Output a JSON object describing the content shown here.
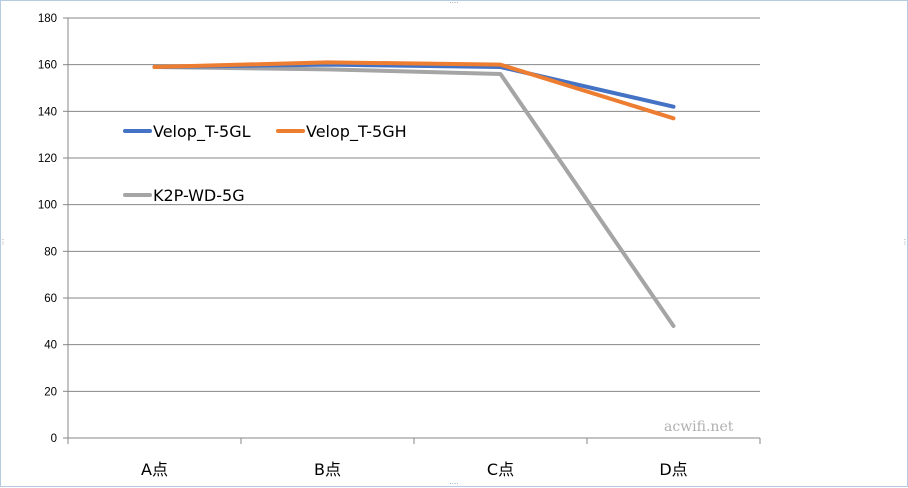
{
  "chart_data": {
    "type": "line",
    "categories": [
      "A点",
      "B点",
      "C点",
      "D点"
    ],
    "series": [
      {
        "name": "Velop_T-5GL",
        "color": "#4472c4",
        "values": [
          159,
          160,
          159,
          142
        ]
      },
      {
        "name": "Velop_T-5GH",
        "color": "#ed7d31",
        "values": [
          159,
          161,
          160,
          137
        ]
      },
      {
        "name": "K2P-WD-5G",
        "color": "#a5a5a5",
        "values": [
          159,
          158,
          156,
          48
        ]
      }
    ],
    "yticks": [
      "0",
      "20",
      "40",
      "60",
      "80",
      "100",
      "120",
      "140",
      "160",
      "180"
    ],
    "ylim": [
      0,
      180
    ],
    "grid": true,
    "legend_position": "left, inside plot"
  },
  "watermark": "acwifi.net"
}
